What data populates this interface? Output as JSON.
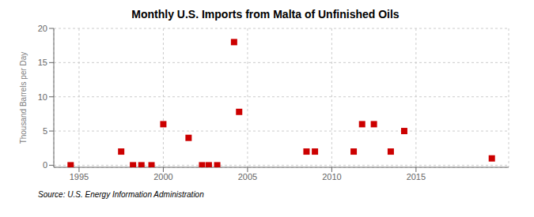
{
  "chart_data": {
    "type": "scatter",
    "title": "Monthly U.S. Imports from Malta of Unfinished Oils",
    "ylabel": "Thousand Barrels per Day",
    "annotations": [
      "Source: U.S. Energy Information Administration"
    ],
    "color": "#cc0000",
    "marker": "square",
    "grid": true,
    "xlim": [
      1993.5,
      2020.5
    ],
    "ylim": [
      -0.3,
      20
    ],
    "xticks": [
      1995,
      2000,
      2005,
      2010,
      2015
    ],
    "yticks": [
      0,
      5,
      10,
      15,
      20
    ],
    "x": [
      1994.5,
      1997.5,
      1998.2,
      1998.7,
      1999.3,
      2000.0,
      2001.5,
      2002.3,
      2002.7,
      2003.2,
      2004.2,
      2004.5,
      2008.5,
      2009.0,
      2011.3,
      2011.8,
      2012.5,
      2013.5,
      2014.3,
      2019.5
    ],
    "values": [
      0.0,
      2.0,
      0.0,
      0.0,
      0.0,
      6.0,
      4.0,
      0.0,
      0.0,
      0.0,
      18.0,
      7.8,
      2.0,
      2.0,
      2.0,
      6.0,
      6.0,
      2.0,
      5.0,
      1.0
    ]
  }
}
